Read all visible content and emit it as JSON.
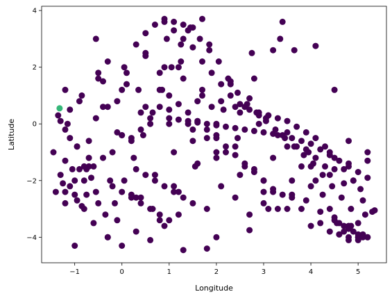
{
  "chart_data": {
    "type": "scatter",
    "title": "",
    "xlabel": "Longitude",
    "ylabel": "Latitude",
    "xlim": [
      -1.7,
      5.6
    ],
    "ylim": [
      -4.9,
      4.15
    ],
    "xticks": [
      -1,
      0,
      1,
      2,
      3,
      4,
      5
    ],
    "yticks": [
      -4,
      -2,
      0,
      2,
      4
    ],
    "xtick_labels": [
      "−1",
      "0",
      "1",
      "2",
      "3",
      "4",
      "5"
    ],
    "ytick_labels": [
      "−4",
      "−2",
      "0",
      "2",
      "4"
    ],
    "grid": false,
    "legend": "none",
    "colors": {
      "main": "#440154",
      "highlight": "#35b779"
    },
    "series": [
      {
        "color": "#440154",
        "x": [
          -1.2,
          -1.1,
          -0.95,
          -0.85,
          -0.7,
          -0.55,
          -0.4,
          -0.25,
          -0.1,
          0.05,
          0.2,
          0.35,
          0.5,
          0.65,
          0.8,
          0.95,
          1.1,
          1.25,
          1.4,
          1.55,
          1.7,
          1.85,
          2.0,
          2.15,
          2.3,
          2.45,
          2.6,
          2.75,
          2.9,
          3.05,
          3.2,
          3.35,
          3.5,
          3.65,
          3.8,
          3.95,
          4.1,
          4.25,
          4.4,
          4.55,
          4.7,
          4.85,
          5.0,
          5.15,
          5.3,
          -1.45,
          -1.35,
          -1.3,
          -1.2,
          -1.0,
          -0.8,
          -0.6,
          -0.3,
          0.0,
          0.3,
          0.6,
          0.9,
          1.2,
          1.5,
          1.8,
          2.1,
          2.4,
          2.7,
          3.0,
          3.3,
          3.6,
          3.9,
          4.2,
          4.5,
          4.8,
          5.1,
          -1.1,
          -0.9,
          -0.7,
          -0.5,
          -0.3,
          -0.1,
          0.1,
          0.3,
          0.5,
          0.7,
          0.9,
          1.1,
          1.3,
          1.5,
          1.7,
          1.9,
          2.1,
          2.3,
          2.5,
          2.7,
          2.9,
          3.1,
          3.3,
          3.5,
          3.7,
          3.9,
          4.1,
          4.3,
          4.5,
          4.7,
          4.9,
          5.05,
          -1.15,
          -0.95,
          -0.75,
          -0.55,
          -0.35,
          -0.15,
          0.05,
          0.25,
          0.45,
          0.65,
          0.85,
          1.05,
          1.25,
          1.45,
          1.65,
          1.85,
          2.05,
          2.25,
          2.45,
          2.65,
          2.85,
          3.05,
          3.25,
          3.45,
          3.65,
          3.85,
          4.05,
          4.25,
          4.45,
          4.65,
          4.85,
          5.0,
          -1.0,
          -0.6,
          -0.2,
          0.2,
          0.6,
          1.0,
          1.4,
          1.8,
          2.2,
          2.6,
          3.0,
          3.4,
          3.8,
          4.2,
          4.6,
          5.0,
          -1.2,
          -0.8,
          -0.4,
          0.0,
          0.4,
          0.8,
          1.2,
          1.6,
          2.0,
          2.4,
          2.8,
          3.2,
          3.6,
          4.0,
          4.4,
          4.8,
          5.2,
          -0.5,
          0.0,
          0.5,
          1.0,
          1.5,
          2.0,
          2.5,
          3.0,
          3.5,
          4.0,
          -1.3,
          -0.9,
          -0.5,
          -0.1,
          0.3,
          0.7,
          1.1,
          1.5,
          1.9,
          2.3,
          2.7,
          3.1,
          3.5,
          3.9,
          4.3,
          4.7,
          5.1,
          -1.1,
          -0.7,
          -0.3,
          0.1,
          0.5,
          0.9,
          1.3,
          1.7,
          2.1,
          2.5,
          2.9,
          3.3,
          3.7,
          4.1,
          4.5,
          4.9,
          -1.2,
          -0.8,
          -0.4,
          0.0,
          0.4,
          0.8,
          1.2,
          1.6,
          2.0,
          2.4,
          2.8,
          3.2,
          3.6,
          4.0,
          4.4,
          4.8,
          5.2,
          0.2,
          0.4,
          0.6,
          0.8,
          1.0,
          1.2,
          1.4,
          1.6,
          1.8,
          2.0,
          2.2,
          2.4,
          2.6,
          2.8,
          3.0,
          3.2,
          3.4,
          0.9,
          1.1,
          1.3,
          1.5,
          1.7,
          -0.55,
          -1.2,
          -1.05,
          -1.4,
          -1.25,
          -0.95,
          -0.85,
          -0.75,
          -0.65,
          -1.0,
          -0.3,
          1.3,
          1.8,
          2.0,
          2.7,
          3.1,
          4.1,
          4.5,
          4.8,
          5.2,
          5.35,
          1.0,
          1.2,
          1.4,
          1.6,
          1.8,
          2.0,
          2.2,
          2.4,
          2.6,
          2.8,
          3.0,
          3.2,
          3.4,
          3.6,
          3.8,
          4.0,
          4.2,
          4.4,
          4.6,
          4.8,
          5.0,
          5.2,
          4.5,
          4.6,
          4.7,
          4.8,
          4.9,
          5.0,
          5.1,
          4.4,
          4.6,
          4.8,
          5.0,
          5.2,
          -0.2,
          0.0,
          0.2,
          0.4,
          0.6,
          0.8,
          1.0,
          0.3,
          0.5,
          0.7,
          0.9,
          1.1,
          1.3
        ],
        "y": [
          -0.2,
          0.5,
          -0.8,
          1.0,
          -1.5,
          0.2,
          1.5,
          -2.0,
          0.8,
          2.0,
          -2.5,
          1.2,
          2.5,
          -3.0,
          1.8,
          3.0,
          -2.2,
          2.2,
          3.3,
          -1.5,
          1.0,
          2.8,
          -1.0,
          0.5,
          1.5,
          -0.5,
          0.6,
          2.5,
          0.3,
          0.2,
          -1.2,
          3.0,
          -0.8,
          2.6,
          -1.5,
          -1.0,
          -2.0,
          -2.5,
          -3.0,
          -3.5,
          -3.8,
          -3.6,
          -4.0,
          -3.2,
          -3.1,
          -1.0,
          0.3,
          -1.8,
          1.2,
          -2.5,
          -3.0,
          -3.5,
          -4.0,
          -4.3,
          -3.8,
          -4.1,
          -3.6,
          -3.2,
          -2.8,
          -3.0,
          -2.2,
          -2.6,
          -3.2,
          -2.8,
          -3.0,
          -2.5,
          -2.7,
          -3.1,
          -3.3,
          -3.6,
          -3.9,
          -0.5,
          0.8,
          -1.2,
          1.6,
          2.2,
          -0.3,
          1.8,
          2.8,
          3.2,
          3.5,
          3.6,
          3.3,
          3.0,
          2.7,
          2.2,
          1.8,
          1.4,
          1.0,
          0.7,
          0.5,
          0.4,
          0.3,
          0.2,
          0.1,
          -0.1,
          -0.3,
          -0.5,
          -0.8,
          -1.2,
          -1.6,
          -2.0,
          -2.3,
          0.0,
          -0.8,
          -1.6,
          -2.4,
          -3.2,
          -2.8,
          -2.0,
          -1.2,
          -0.4,
          0.4,
          1.2,
          2.0,
          2.8,
          3.4,
          3.0,
          2.6,
          2.2,
          1.6,
          1.1,
          0.7,
          0.4,
          0.1,
          -0.2,
          -0.5,
          -0.8,
          -1.1,
          -1.4,
          -1.8,
          -2.2,
          -2.6,
          -3.0,
          -3.5,
          -2.0,
          -1.5,
          -1.0,
          -0.5,
          0.0,
          0.5,
          0.0,
          -0.5,
          -1.0,
          -1.5,
          -2.0,
          -2.5,
          -3.0,
          -3.5,
          -3.9,
          -4.0,
          -2.8,
          -2.0,
          -1.2,
          -0.4,
          0.4,
          1.2,
          2.0,
          0.8,
          0.0,
          -0.8,
          -1.6,
          -2.4,
          -2.0,
          -1.5,
          -1.0,
          -0.6,
          -1.3,
          1.8,
          1.2,
          0.6,
          0.0,
          -0.6,
          -1.2,
          -1.8,
          -2.4,
          -3.0,
          -3.6,
          0.1,
          -1.6,
          -2.8,
          -3.4,
          -2.6,
          -1.8,
          -1.0,
          -0.2,
          0.6,
          1.4,
          0.9,
          0.3,
          -0.3,
          -0.9,
          -1.5,
          -2.1,
          -2.7,
          -2.2,
          -0.6,
          0.6,
          1.4,
          2.4,
          2.0,
          1.6,
          1.2,
          0.8,
          0.4,
          0.0,
          -0.4,
          -0.8,
          -1.2,
          -1.6,
          -2.0,
          -2.4,
          -1.5,
          0.6,
          -0.4,
          -2.6,
          -3.4,
          -2.4,
          -1.4,
          -0.4,
          0.6,
          1.6,
          2.6,
          -2.6,
          -2.2,
          -1.8,
          -1.4,
          -1.0,
          -0.6,
          -0.2,
          0.2,
          0.6,
          1.0,
          0.7,
          0.4,
          0.1,
          -0.2,
          -0.5,
          -0.8,
          -1.1,
          -1.4,
          -1.7,
          -2.0,
          -2.3,
          3.6,
          3.7,
          3.6,
          3.5,
          3.4,
          3.7,
          3.0,
          -1.3,
          -1.6,
          -2.4,
          -2.1,
          -2.7,
          -2.9,
          -2.5,
          -1.9,
          -4.3,
          -4.0,
          -4.45,
          -4.4,
          -4.0,
          -3.75,
          -3.0,
          2.75,
          1.2,
          -4.1,
          -4.0,
          -3.05,
          0.2,
          0.15,
          0.1,
          0.05,
          0.0,
          -0.05,
          -0.1,
          -0.15,
          -0.2,
          -0.25,
          -0.3,
          -0.35,
          -0.4,
          -0.5,
          -0.6,
          -0.7,
          -0.9,
          -1.1,
          -1.3,
          -1.5,
          -1.7,
          -1.9,
          -3.4,
          -3.5,
          -3.6,
          -3.7,
          -3.8,
          -3.9,
          -4.0,
          -3.8,
          -3.9,
          -4.0,
          -4.1,
          -4.0,
          -2.2,
          -2.4,
          -2.6,
          -2.8,
          -3.0,
          -3.2,
          -3.4,
          -1.6,
          -1.8,
          -2.0,
          -2.2,
          -2.4,
          -2.6
        ]
      },
      {
        "color": "#35b779",
        "x": [
          -1.32
        ],
        "y": [
          0.55
        ]
      }
    ]
  }
}
